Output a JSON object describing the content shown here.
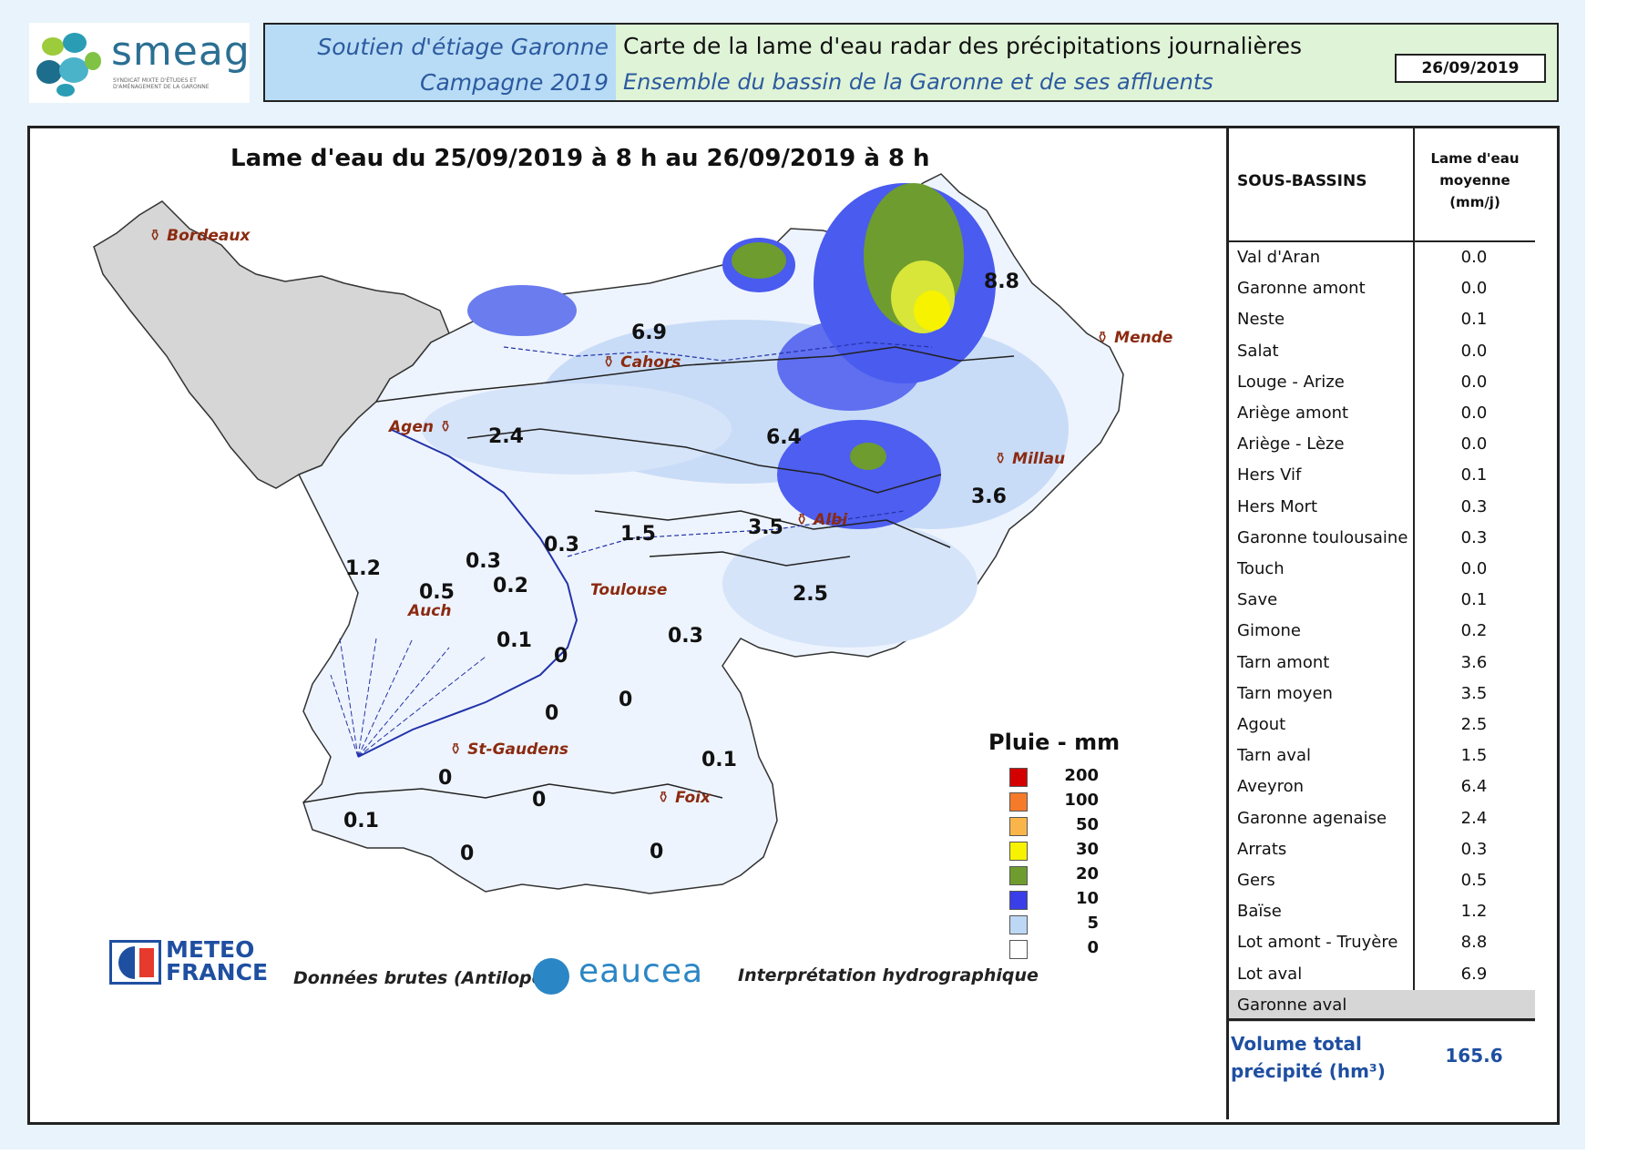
{
  "header": {
    "logo_name": "smeag",
    "logo_subtitle": "Syndicat mixte d'études et d'aménagement de la Garonne",
    "left_line1": "Soutien d'étiage Garonne",
    "left_line2": "Campagne 2019",
    "right_line1": "Carte de la lame d'eau radar des précipitations journalières",
    "right_line2": "Ensemble du bassin de la Garonne et de ses affluents",
    "date": "26/09/2019"
  },
  "map": {
    "title": "Lame d'eau du 25/09/2019 à 8 h au 26/09/2019 à 8 h",
    "cities": [
      "Bordeaux",
      "Mende",
      "Cahors",
      "Agen",
      "Millau",
      "Albi",
      "Toulouse",
      "Auch",
      "St-Gaudens",
      "Foix"
    ],
    "values": [
      "8.8",
      "6.9",
      "2.4",
      "6.4",
      "3.6",
      "3.5",
      "1.5",
      "0.3",
      "1.2",
      "0.5",
      "0.3",
      "0.2",
      "2.5",
      "0.3",
      "0.1",
      "0",
      "0",
      "0",
      "0.1",
      "0",
      "0",
      "0.1",
      "0",
      "0"
    ]
  },
  "legend": {
    "title": "Pluie - mm",
    "items": [
      {
        "value": "200",
        "color": "#d40000"
      },
      {
        "value": "100",
        "color": "#f57a2a"
      },
      {
        "value": "50",
        "color": "#f9b54a"
      },
      {
        "value": "30",
        "color": "#f7f200"
      },
      {
        "value": "20",
        "color": "#6e9c2e"
      },
      {
        "value": "10",
        "color": "#3a3ee8"
      },
      {
        "value": "5",
        "color": "#bcd8f5"
      },
      {
        "value": "0",
        "color": "#ffffff"
      }
    ]
  },
  "credits": {
    "meteo_line1": "METEO",
    "meteo_line2": "FRANCE",
    "raw_data": "Données brutes (Antilope)",
    "eaucea": "eaucea",
    "interpretation": "Interprétation hydrographique"
  },
  "table": {
    "col1_header": "SOUS-BASSINS",
    "col2_header_l1": "Lame d'eau",
    "col2_header_l2": "moyenne",
    "col2_header_l3": "(mm/j)",
    "rows": [
      {
        "name": "Val d'Aran",
        "value": "0.0"
      },
      {
        "name": "Garonne amont",
        "value": "0.0"
      },
      {
        "name": "Neste",
        "value": "0.1"
      },
      {
        "name": "Salat",
        "value": "0.0"
      },
      {
        "name": "Louge - Arize",
        "value": "0.0"
      },
      {
        "name": "Ariège amont",
        "value": "0.0"
      },
      {
        "name": "Ariège - Lèze",
        "value": "0.0"
      },
      {
        "name": "Hers Vif",
        "value": "0.1"
      },
      {
        "name": "Hers Mort",
        "value": "0.3"
      },
      {
        "name": "Garonne toulousaine",
        "value": "0.3"
      },
      {
        "name": "Touch",
        "value": "0.0"
      },
      {
        "name": "Save",
        "value": "0.1"
      },
      {
        "name": "Gimone",
        "value": "0.2"
      },
      {
        "name": "Tarn amont",
        "value": "3.6"
      },
      {
        "name": "Tarn moyen",
        "value": "3.5"
      },
      {
        "name": "Agout",
        "value": "2.5"
      },
      {
        "name": "Tarn aval",
        "value": "1.5"
      },
      {
        "name": "Aveyron",
        "value": "6.4"
      },
      {
        "name": "Garonne agenaise",
        "value": "2.4"
      },
      {
        "name": "Arrats",
        "value": "0.3"
      },
      {
        "name": "Gers",
        "value": "0.5"
      },
      {
        "name": "Baïse",
        "value": "1.2"
      },
      {
        "name": "Lot amont - Truyère",
        "value": "8.8"
      },
      {
        "name": "Lot aval",
        "value": "6.9"
      },
      {
        "name": "Garonne aval",
        "value": ""
      }
    ],
    "total_label_l1": "Volume total",
    "total_label_l2": "précipité (hm³)",
    "total_value": "165.6"
  }
}
